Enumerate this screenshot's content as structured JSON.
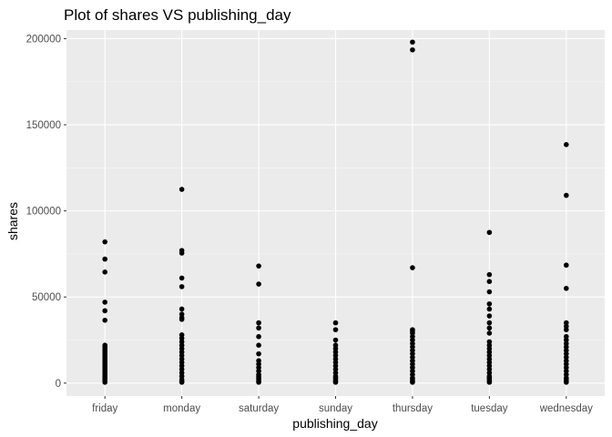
{
  "chart_data": {
    "type": "scatter",
    "title": "Plot of shares VS publishing_day",
    "xlabel": "publishing_day",
    "ylabel": "shares",
    "categories": [
      "friday",
      "monday",
      "saturday",
      "sunday",
      "thursday",
      "tuesday",
      "wednesday"
    ],
    "ylim": [
      -7500,
      205000
    ],
    "yticks": [
      0,
      50000,
      100000,
      150000,
      200000
    ],
    "ytick_labels": [
      "0",
      "50000",
      "100000",
      "150000",
      "200000"
    ],
    "grid": true,
    "legend": "none",
    "colors": {
      "panel_background": "#ebebeb",
      "grid_major": "#ffffff",
      "grid_minor": "#f5f5f5",
      "point": "#000000"
    },
    "series": [
      {
        "category": "friday",
        "values": [
          82000,
          72000,
          64500,
          47000,
          42000,
          36500,
          22000,
          21000,
          20000,
          19000,
          18000,
          17000,
          16000,
          15000,
          14000,
          13000,
          12000,
          11000,
          10000,
          9000,
          8000,
          7000,
          6000,
          5000,
          4000,
          3000,
          2000,
          1000,
          500
        ]
      },
      {
        "category": "monday",
        "values": [
          112500,
          77000,
          75500,
          61000,
          56000,
          43000,
          40000,
          38000,
          37000,
          28000,
          26000,
          24000,
          22000,
          20000,
          18000,
          16000,
          14000,
          12000,
          10000,
          8000,
          6000,
          4000,
          2000,
          1000,
          500
        ]
      },
      {
        "category": "saturday",
        "values": [
          68000,
          57500,
          35000,
          32000,
          27000,
          22000,
          17000,
          13000,
          11000,
          9000,
          7000,
          5000,
          4000,
          3000,
          2000,
          1000,
          500
        ]
      },
      {
        "category": "sunday",
        "values": [
          35000,
          31000,
          25000,
          22000,
          20000,
          18000,
          16000,
          14000,
          12000,
          10000,
          8000,
          6000,
          4000,
          3000,
          2000,
          1000,
          500
        ]
      },
      {
        "category": "thursday",
        "values": [
          198000,
          193500,
          67000,
          31000,
          30000,
          29000,
          27000,
          25000,
          23000,
          21000,
          19000,
          17000,
          15000,
          13000,
          11000,
          9000,
          7000,
          5000,
          3000,
          2000,
          1000,
          500
        ]
      },
      {
        "category": "tuesday",
        "values": [
          87500,
          63000,
          59000,
          53000,
          46000,
          43000,
          39000,
          35000,
          32000,
          29000,
          24000,
          22000,
          20000,
          18000,
          16000,
          14000,
          12000,
          10000,
          8000,
          6000,
          4000,
          3000,
          2000,
          1000,
          500
        ]
      },
      {
        "category": "wednesday",
        "values": [
          138500,
          109000,
          68500,
          55000,
          35000,
          33000,
          31000,
          27000,
          25000,
          23000,
          21000,
          19000,
          17000,
          15000,
          13000,
          11000,
          9000,
          7000,
          5000,
          3000,
          2000,
          1000,
          500
        ]
      }
    ]
  }
}
